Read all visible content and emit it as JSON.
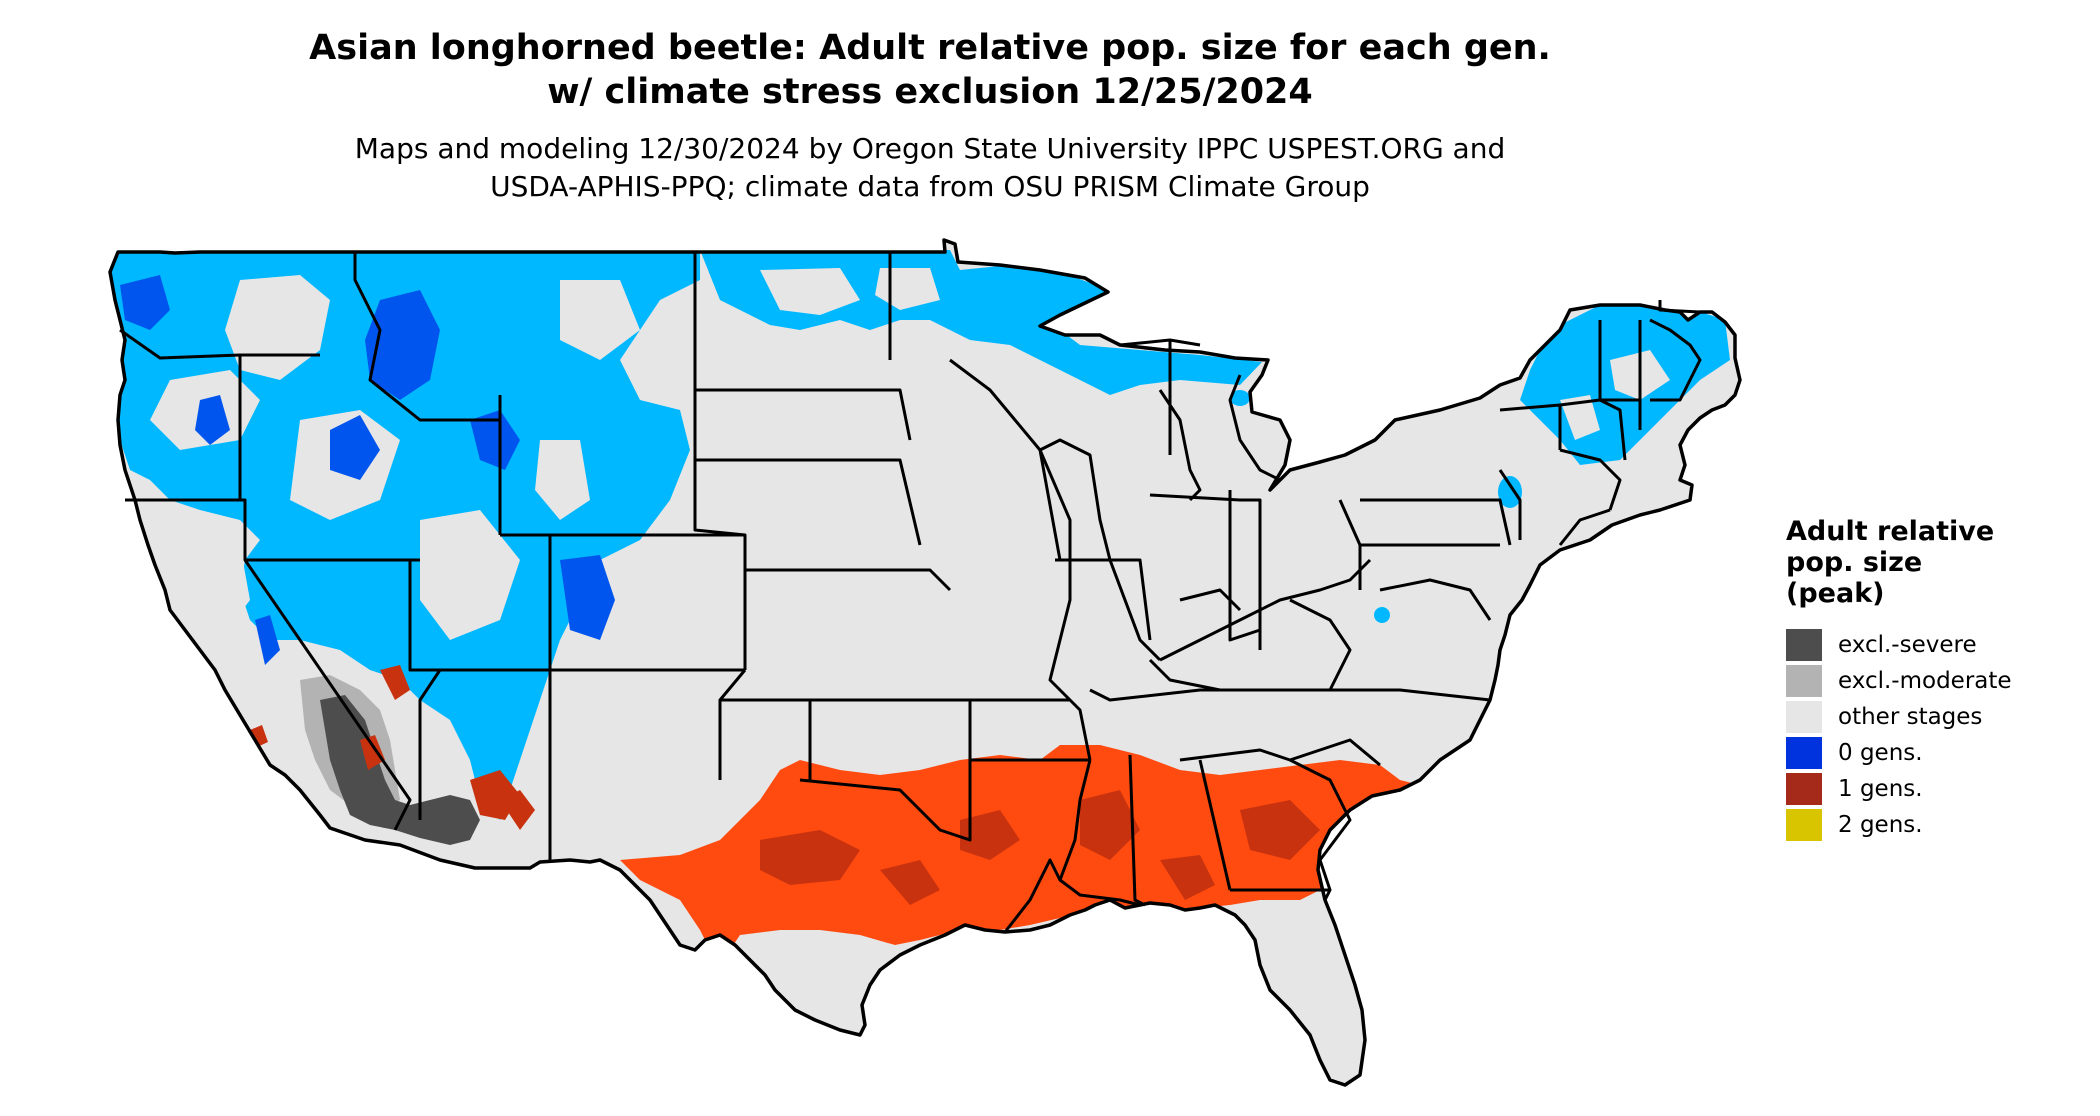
{
  "header": {
    "title_line1": "Asian longhorned beetle: Adult relative pop. size for each gen.",
    "title_line2": "w/ climate stress exclusion 12/25/2024",
    "subtitle_line1": "Maps and modeling 12/30/2024 by Oregon State University IPPC USPEST.ORG and",
    "subtitle_line2": "USDA-APHIS-PPQ; climate data from OSU PRISM Climate Group"
  },
  "legend": {
    "title_line1": "Adult relative",
    "title_line2": "pop. size",
    "title_line3": "(peak)",
    "items": [
      {
        "label": "excl.-severe",
        "color": "#4d4d4d"
      },
      {
        "label": "excl.-moderate",
        "color": "#b3b3b3"
      },
      {
        "label": "other stages",
        "color": "#e6e6e6"
      },
      {
        "label": "0 gens.",
        "color": "#0033dd"
      },
      {
        "label": "1 gens.",
        "color": "#a52a1a"
      },
      {
        "label": "2 gens.",
        "color": "#d9c400"
      }
    ]
  },
  "map": {
    "region": "Contiguous United States",
    "colors": {
      "land": "#e6e6e6",
      "cold_zone": "#00b8ff",
      "cold_zone_dark": "#0055ee",
      "zero_gens": "#0033dd",
      "one_gen_bright": "#ff4a10",
      "one_gen_dark": "#c8320e",
      "excl_severe": "#4d4d4d",
      "excl_moderate": "#b3b3b3",
      "borders": "#000000"
    }
  }
}
